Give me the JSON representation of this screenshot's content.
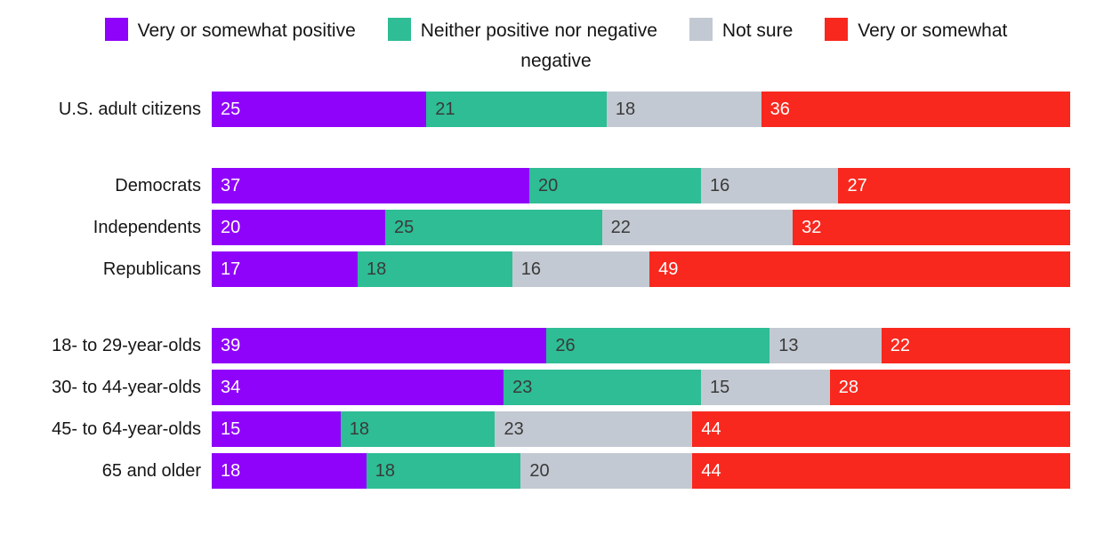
{
  "chart_data": {
    "type": "bar",
    "orientation": "horizontal",
    "stacked": true,
    "xlim": [
      0,
      100
    ],
    "legend_position": "top",
    "grid": false,
    "categories": [
      "U.S. adult citizens",
      "Democrats",
      "Independents",
      "Republicans",
      "18- to 29-year-olds",
      "30- to 44-year-olds",
      "45- to 64-year-olds",
      "65 and older"
    ],
    "category_groups": [
      [
        0
      ],
      [
        1,
        2,
        3
      ],
      [
        4,
        5,
        6,
        7
      ]
    ],
    "series": [
      {
        "name": "Very or somewhat positive",
        "color": "#9003fa",
        "value_label_color": "#ffffff",
        "values": [
          25,
          37,
          20,
          17,
          39,
          34,
          15,
          18
        ]
      },
      {
        "name": "Neither positive nor negative",
        "color": "#2ebd95",
        "value_label_color": "#3a3a3a",
        "values": [
          21,
          20,
          25,
          18,
          26,
          23,
          18,
          18
        ]
      },
      {
        "name": "Not sure",
        "color": "#c3c9d2",
        "value_label_color": "#3a3a3a",
        "values": [
          18,
          16,
          22,
          16,
          13,
          15,
          23,
          20
        ]
      },
      {
        "name": "Very or somewhat negative",
        "color": "#f8281e",
        "value_label_color": "#ffffff",
        "values": [
          36,
          27,
          32,
          49,
          22,
          28,
          44,
          44
        ]
      }
    ]
  }
}
